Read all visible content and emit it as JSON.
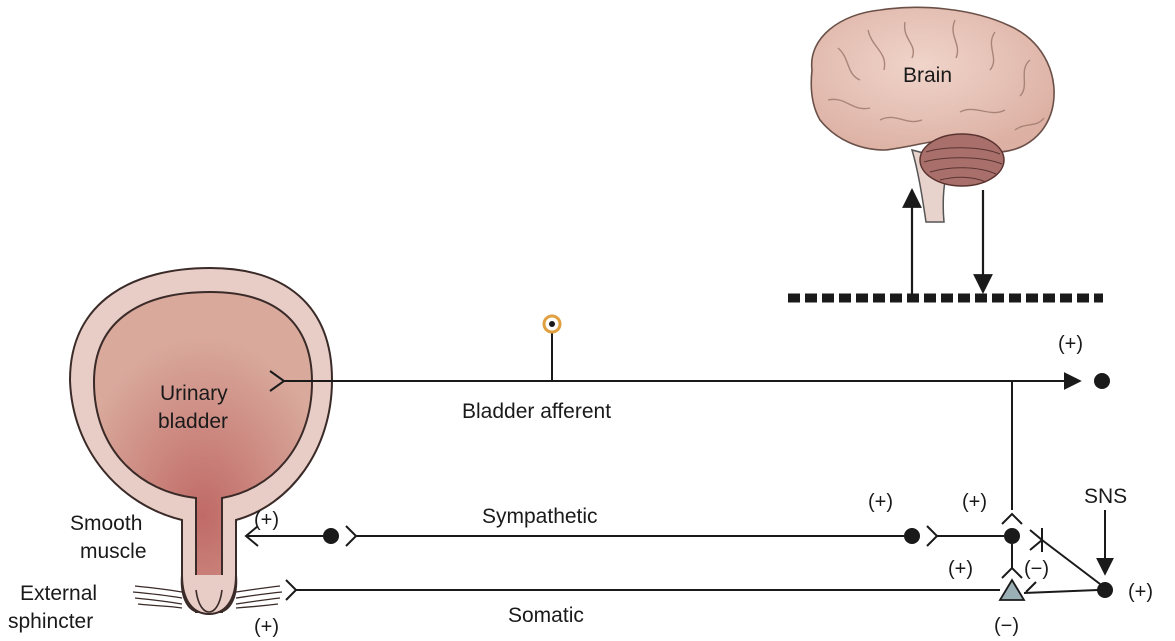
{
  "labels": {
    "brain": "Brain",
    "bladder_line1": "Urinary",
    "bladder_line2": "bladder",
    "smooth_line1": "Smooth",
    "smooth_line2": "muscle",
    "sphincter_line1": "External",
    "sphincter_line2": "sphincter",
    "afferent": "Bladder afferent",
    "sympathetic": "Sympathetic",
    "somatic": "Somatic",
    "sns": "SNS"
  },
  "signs": {
    "afferent_end": "(+)",
    "smooth_muscle": "(+)",
    "sphincter": "(+)",
    "sympathetic_ganglion": "(+)",
    "sympathetic_synapse": "(+)",
    "somatic_synapse": "(+)",
    "inhibitory_synapse": "(−)",
    "somatic_neuron_bottom": "(−)",
    "sns_neuron": "(+)"
  },
  "colors": {
    "bladder_wall": "#e8cdc6",
    "bladder_lumen_center": "#c06a66",
    "bladder_lumen_edge": "#d9a99c",
    "brain": "#e6c3b7",
    "cerebellum": "#a9706b",
    "ganglion": "#e0a040",
    "somatic_neuron": "#9ab0b4",
    "line": "#1a1a1a"
  },
  "icons": {
    "brain": "brain-illustration",
    "bladder": "urinary-bladder-illustration",
    "sphincter": "external-sphincter-muscle-fibers",
    "ganglion": "dorsal-root-ganglion-icon",
    "somatic_neuron": "triangle-neuron-icon"
  }
}
